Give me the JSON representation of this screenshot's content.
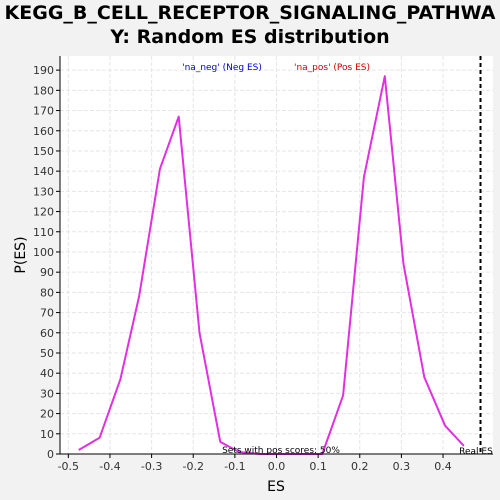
{
  "chart_data": {
    "type": "line",
    "title_line1": "KEGG_B_CELL_RECEPTOR_SIGNALING_PATHWA",
    "title_line2": "Y: Random ES distribution",
    "xlabel": "ES",
    "ylabel": "P(ES)",
    "xlim": [
      -0.52,
      0.52
    ],
    "ylim": [
      0,
      197
    ],
    "x_ticks": [
      -0.5,
      -0.4,
      -0.3,
      -0.2,
      -0.1,
      0.0,
      0.1,
      0.2,
      0.3,
      0.4
    ],
    "x_tick_labels": [
      "-0.5",
      "-0.4",
      "-0.3",
      "-0.2",
      "-0.1",
      "0.0",
      "0.1",
      "0.2",
      "0.3",
      "0.4"
    ],
    "y_ticks": [
      0,
      10,
      20,
      30,
      40,
      50,
      60,
      70,
      80,
      90,
      100,
      110,
      120,
      130,
      140,
      150,
      160,
      170,
      180,
      190
    ],
    "grid": true,
    "legend": [
      {
        "label": "'na_neg' (Neg ES)",
        "color": "#0000cc"
      },
      {
        "label": "'na_pos' (Pos ES)",
        "color": "#cc0000"
      }
    ],
    "series": [
      {
        "color": "#e030e0",
        "x": [
          -0.475,
          -0.425,
          -0.375,
          -0.33,
          -0.28,
          -0.235,
          -0.185,
          -0.135,
          -0.09,
          -0.04,
          0.005,
          0.05,
          0.11,
          0.16,
          0.21,
          0.26,
          0.305,
          0.355,
          0.405,
          0.45
        ],
        "y": [
          2,
          8,
          37,
          78,
          141,
          167,
          60,
          6,
          1,
          0,
          0,
          0,
          0,
          29,
          137,
          187,
          94,
          38,
          14,
          4
        ]
      }
    ],
    "real_es": {
      "x": 0.49,
      "label": "Real ES",
      "color": "#000000"
    },
    "annotation": "Sets with pos scores: 50%"
  },
  "colors": {
    "background": "#f2f2f2",
    "plot_background": "#ffffff",
    "grid": "#e6e6e6",
    "axis": "#000000"
  }
}
